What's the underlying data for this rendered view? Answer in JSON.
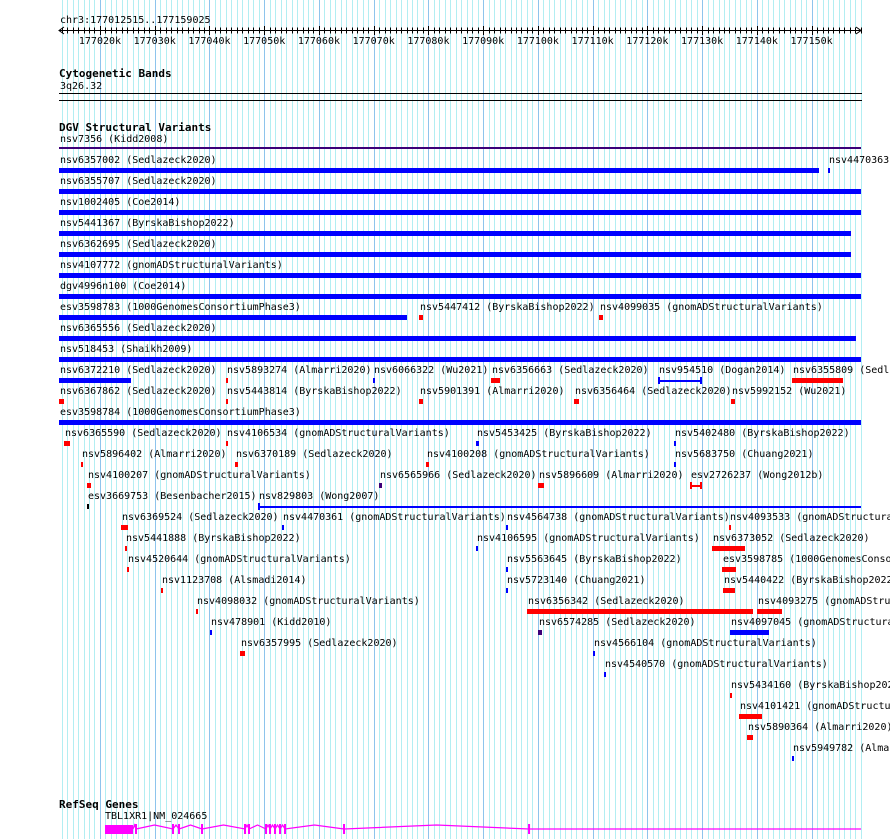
{
  "view": {
    "location": "chr3:177012515..177159025",
    "chrom": "chr3",
    "start": 177012515,
    "end": 177159025
  },
  "ruler": {
    "tick_labels": [
      "177020k",
      "177030k",
      "177040k",
      "177050k",
      "177060k",
      "177070k",
      "177080k",
      "177090k",
      "177100k",
      "177110k",
      "177120k",
      "177130k",
      "177140k",
      "177150k"
    ]
  },
  "colors": {
    "red": "#ff0000",
    "blue": "#0000ff",
    "purple": "#3c0078",
    "black": "#000000",
    "gene": "#ff00ff",
    "grid_minor": "#b2eef2",
    "grid_major": "#8ec4ec"
  },
  "tracks": {
    "cyto": {
      "title": "Cytogenetic Bands",
      "band": "3q26.32"
    },
    "dgv": {
      "title": "DGV Structural Variants",
      "features": [
        {
          "label": "nsv7356 (Kidd2008)",
          "row": -1,
          "start": 177012515,
          "end": 177159025,
          "color": "purple",
          "kind": "thin"
        },
        {
          "label": "nsv6357002 (Sedlazeck2020)",
          "row": 0,
          "start": 177012515,
          "end": 177151367,
          "color": "blue"
        },
        {
          "label": "nsv4470363",
          "row": 0,
          "start": 177153011,
          "end": 177153377,
          "color": "blue"
        },
        {
          "label": "nsv6355707 (Sedlazeck2020)",
          "row": 1,
          "start": 177012515,
          "end": 177159025,
          "color": "blue"
        },
        {
          "label": "nsv1002405 (Coe2014)",
          "row": 2,
          "start": 177012515,
          "end": 177159025,
          "color": "blue"
        },
        {
          "label": "nsv5441367 (ByrskaBishop2022)",
          "row": 3,
          "start": 177012515,
          "end": 177157213,
          "color": "blue"
        },
        {
          "label": "nsv6362695 (Sedlazeck2020)",
          "row": 4,
          "start": 177012515,
          "end": 177157213,
          "color": "blue"
        },
        {
          "label": "nsv4107772 (gnomADStructuralVariants)",
          "row": 5,
          "start": 177012515,
          "end": 177159025,
          "color": "blue"
        },
        {
          "label": "dgv4996n100 (Coe2014)",
          "row": 6,
          "start": 177012515,
          "end": 177159025,
          "color": "blue"
        },
        {
          "label": "esv3598783 (1000GenomesConsortiumPhase3)",
          "row": 7,
          "start": 177012515,
          "end": 177076095,
          "color": "blue"
        },
        {
          "label": "nsv5447412 (ByrskaBishop2022)",
          "row": 7,
          "start": 177078287,
          "end": 177079018,
          "color": "red"
        },
        {
          "label": "nsv4099035 (gnomADStructuralVariants)",
          "row": 7,
          "start": 177111173,
          "end": 177111904,
          "color": "red"
        },
        {
          "label": "nsv6365556 (Sedlazeck2020)",
          "row": 8,
          "start": 177012515,
          "end": 177158127,
          "color": "blue"
        },
        {
          "label": "nsv518453 (Shaikh2009)",
          "row": 9,
          "start": 177012515,
          "end": 177159025,
          "color": "blue"
        },
        {
          "label": "nsv6372210 (Sedlazeck2020)",
          "row": 10,
          "start": 177012515,
          "end": 177025669,
          "color": "blue"
        },
        {
          "label": "nsv5893274 (Almarri2020)",
          "row": 10,
          "start": 177043026,
          "end": 177043392,
          "color": "red"
        },
        {
          "label": "nsv6066322 (Wu2021)",
          "row": 10,
          "start": 177069883,
          "end": 177070249,
          "color": "blue"
        },
        {
          "label": "nsv6356663 (Sedlazeck2020)",
          "row": 10,
          "start": 177091441,
          "end": 177093086,
          "color": "red"
        },
        {
          "label": "nsv954510 (Dogan2014)",
          "row": 10,
          "start": 177121952,
          "end": 177129976,
          "color": "blue",
          "kind": "line"
        },
        {
          "label": "nsv6355809 (Sedla",
          "row": 10,
          "start": 177146434,
          "end": 177155752,
          "color": "red"
        },
        {
          "label": "nsv6367862 (Sedlazeck2020)",
          "row": 11,
          "start": 177012515,
          "end": 177013429,
          "color": "red"
        },
        {
          "label": "nsv5443814 (ByrskaBishop2022)",
          "row": 11,
          "start": 177043026,
          "end": 177043392,
          "color": "red"
        },
        {
          "label": "nsv5901391 (Almarri2020)",
          "row": 11,
          "start": 177078287,
          "end": 177079018,
          "color": "red"
        },
        {
          "label": "nsv6356464 (Sedlazeck2020)",
          "row": 11,
          "start": 177106606,
          "end": 177107519,
          "color": "red"
        },
        {
          "label": "nsv5992152 (Wu2021)",
          "row": 11,
          "start": 177135289,
          "end": 177136020,
          "color": "red"
        },
        {
          "label": "esv3598784 (1000GenomesConsortiumPhase3)",
          "row": 12,
          "start": 177012515,
          "end": 177159025,
          "color": "blue"
        },
        {
          "label": "nsv6365590 (Sedlazeck2020)",
          "row": 13,
          "start": 177013429,
          "end": 177014525,
          "color": "red"
        },
        {
          "label": "nsv4106534 (gnomADStructuralVariants)",
          "row": 13,
          "start": 177043026,
          "end": 177043392,
          "color": "red"
        },
        {
          "label": "nsv5453425 (ByrskaBishop2022)",
          "row": 13,
          "start": 177088701,
          "end": 177089249,
          "color": "blue"
        },
        {
          "label": "nsv5402480 (ByrskaBishop2022)",
          "row": 13,
          "start": 177124876,
          "end": 177125242,
          "color": "blue"
        },
        {
          "label": "nsv5896402 (Almarri2020)",
          "row": 14,
          "start": 177016534,
          "end": 177016900,
          "color": "red"
        },
        {
          "label": "nsv6370189 (Sedlazeck2020)",
          "row": 14,
          "start": 177044670,
          "end": 177045218,
          "color": "red"
        },
        {
          "label": "nsv4100208 (gnomADStructuralVariants)",
          "row": 14,
          "start": 177079566,
          "end": 177080114,
          "color": "red"
        },
        {
          "label": "nsv5683750 (Chuang2021)",
          "row": 14,
          "start": 177124876,
          "end": 177125242,
          "color": "blue"
        },
        {
          "label": "nsv4100207 (gnomADStructuralVariants)",
          "row": 15,
          "start": 177017631,
          "end": 177018362,
          "color": "red"
        },
        {
          "label": "nsv6565966 (Sedlazeck2020)",
          "row": 15,
          "start": 177070979,
          "end": 177071527,
          "color": "purple"
        },
        {
          "label": "nsv5896609 (Almarri2020)",
          "row": 15,
          "start": 177100028,
          "end": 177101124,
          "color": "red"
        },
        {
          "label": "esv2726237 (Wong2012b)",
          "row": 15,
          "start": 177127799,
          "end": 177129976,
          "color": "red",
          "kind": "line"
        },
        {
          "label": "esv3669753 (Besenbacher2015)",
          "row": 16,
          "start": 177017631,
          "end": 177017996,
          "color": "black"
        },
        {
          "label": "nsv829803 (Wong2007)",
          "row": 16,
          "start": 177048872,
          "end": 177159025,
          "color": "blue",
          "kind": "line"
        },
        {
          "label": "nsv6369524 (Sedlazeck2020)",
          "row": 17,
          "start": 177023842,
          "end": 177025121,
          "color": "red"
        },
        {
          "label": "nsv4470361 (gnomADStructuralVariants)",
          "row": 17,
          "start": 177053257,
          "end": 177053623,
          "color": "blue"
        },
        {
          "label": "nsv4564738 (gnomADStructuralVariants)",
          "row": 17,
          "start": 177094182,
          "end": 177094548,
          "color": "blue"
        },
        {
          "label": "nsv4093533 (gnomADStructura",
          "row": 17,
          "start": 177134924,
          "end": 177135289,
          "color": "red"
        },
        {
          "label": "nsv5441888 (ByrskaBishop2022)",
          "row": 18,
          "start": 177024573,
          "end": 177024939,
          "color": "red"
        },
        {
          "label": "nsv4106595 (gnomADStructuralVariants)",
          "row": 18,
          "start": 177088701,
          "end": 177089067,
          "color": "blue"
        },
        {
          "label": "nsv6373052 (Sedlazeck2020)",
          "row": 18,
          "start": 177131818,
          "end": 177137847,
          "color": "red"
        },
        {
          "label": "nsv4520644 (gnomADStructuralVariants)",
          "row": 19,
          "start": 177024939,
          "end": 177025304,
          "color": "red"
        },
        {
          "label": "nsv5563645 (ByrskaBishop2022)",
          "row": 19,
          "start": 177094182,
          "end": 177094548,
          "color": "blue"
        },
        {
          "label": "esv3598785 (1000GenomesConso",
          "row": 19,
          "start": 177133645,
          "end": 177136203,
          "color": "red"
        },
        {
          "label": "nsv1123708 (Alsmadi2014)",
          "row": 20,
          "start": 177031150,
          "end": 177031516,
          "color": "red"
        },
        {
          "label": "nsv5723140 (Chuang2021)",
          "row": 20,
          "start": 177094182,
          "end": 177094548,
          "color": "blue"
        },
        {
          "label": "nsv5440422 (ByrskaBishop2022",
          "row": 20,
          "start": 177133828,
          "end": 177136020,
          "color": "red"
        },
        {
          "label": "nsv4098032 (gnomADStructuralVariants)",
          "row": 21,
          "start": 177037545,
          "end": 177037911,
          "color": "red"
        },
        {
          "label": "nsv6356342 (Sedlazeck2020)",
          "row": 21,
          "start": 177098019,
          "end": 177139309,
          "color": "red"
        },
        {
          "label": "nsv4093275 (gnomADStru",
          "row": 21,
          "start": 177140040,
          "end": 177144607,
          "color": "red"
        },
        {
          "label": "nsv478901 (Kidd2010)",
          "row": 22,
          "start": 177040103,
          "end": 177040469,
          "color": "blue"
        },
        {
          "label": "nsv6574285 (Sedlazeck2020)",
          "row": 22,
          "start": 177100028,
          "end": 177100759,
          "color": "purple"
        },
        {
          "label": "nsv4097045 (gnomADStructura",
          "row": 22,
          "start": 177135107,
          "end": 177142232,
          "color": "blue"
        },
        {
          "label": "nsv6357995 (Sedlazeck2020)",
          "row": 23,
          "start": 177045584,
          "end": 177046497,
          "color": "red"
        },
        {
          "label": "nsv4566104 (gnomADStructuralVariants)",
          "row": 23,
          "start": 177110077,
          "end": 177110443,
          "color": "blue"
        },
        {
          "label": "nsv4540570 (gnomADStructuralVariants)",
          "row": 24,
          "start": 177112087,
          "end": 177112453,
          "color": "blue"
        },
        {
          "label": "nsv5434160 (ByrskaBishop202",
          "row": 25,
          "start": 177135107,
          "end": 177135473,
          "color": "red"
        },
        {
          "label": "nsv4101421 (gnomADStructur",
          "row": 26,
          "start": 177136751,
          "end": 177140953,
          "color": "red"
        },
        {
          "label": "nsv5890364 (Almarri2020)",
          "row": 27,
          "start": 177138213,
          "end": 177139309,
          "color": "red"
        },
        {
          "label": "nsv5949782 (Almar",
          "row": 28,
          "start": 177146434,
          "end": 177146800,
          "color": "blue"
        }
      ]
    },
    "refseq": {
      "title": "RefSeq Genes",
      "gene": {
        "label": "TBL1XR1|NM_024665",
        "start": 177020919,
        "end": 177159025,
        "thick_block": [
          177020919,
          177026035
        ],
        "exons": [
          177026583,
          177033343,
          177034439,
          177038641,
          177046497,
          177047228,
          177050334,
          177051065,
          177051978,
          177052892,
          177053805,
          177064585,
          177098384
        ]
      }
    }
  }
}
